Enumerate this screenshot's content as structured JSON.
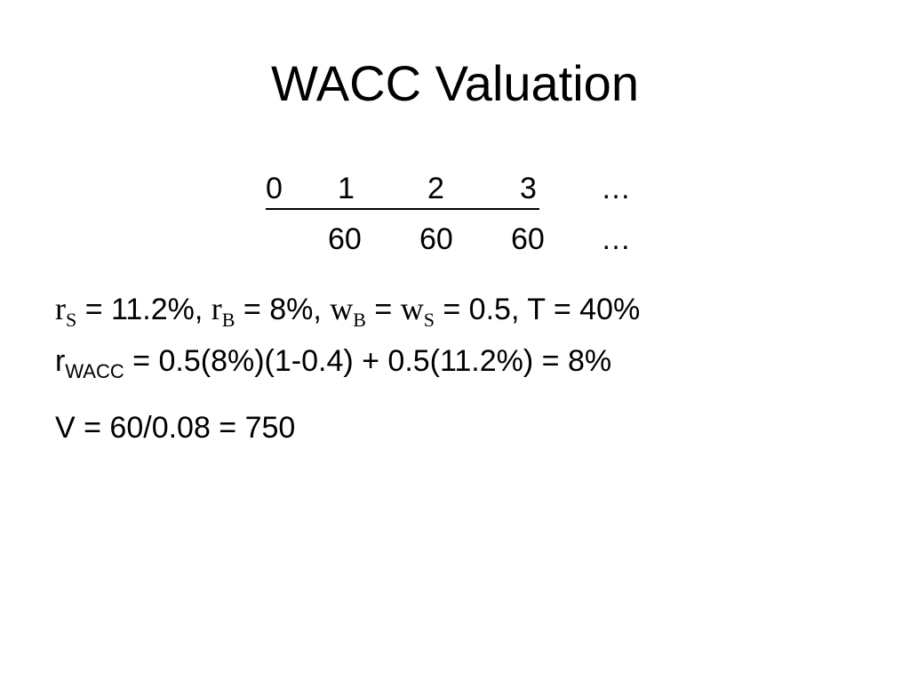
{
  "title": "WACC Valuation",
  "timeline": {
    "periods": [
      "0",
      "1",
      "2",
      "3",
      "…"
    ],
    "cash_flows": [
      "60",
      "60",
      "60",
      "…"
    ]
  },
  "line1": {
    "r_main": "r",
    "r_s_sub": "S",
    "r_s_val": " = 11.2%, ",
    "r_b_main": "r",
    "r_b_sub": "B",
    "r_b_val": " = 8%, ",
    "w_b_main": "w",
    "w_b_sub": "B",
    "eq_mid": " = ",
    "w_s_main": "w",
    "w_s_sub": "S",
    "tail": " = 0.5, T = 40%"
  },
  "line2": {
    "main": "r",
    "sub": "WACC",
    "expr": " = 0.5(8%)(1-0.4) + 0.5(11.2%) = 8%"
  },
  "line3": {
    "text": "V = 60/0.08 = 750"
  }
}
